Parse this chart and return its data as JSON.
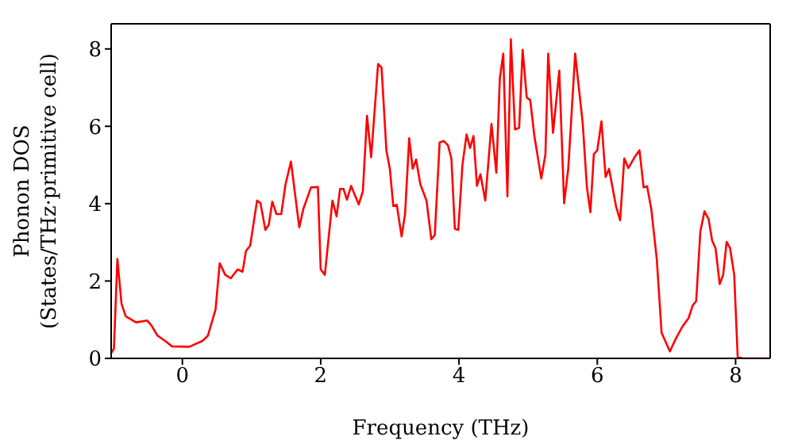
{
  "chart_data": {
    "type": "line",
    "xlabel": "Frequency (THz)",
    "ylabel": "Phonon DOS\n(States/THz·primitive cell)",
    "x": [
      -1.03,
      -0.99,
      -0.94,
      -0.88,
      -0.82,
      -0.67,
      -0.51,
      -0.45,
      -0.36,
      -0.25,
      -0.15,
      0.1,
      0.29,
      0.37,
      0.48,
      0.54,
      0.62,
      0.7,
      0.8,
      0.87,
      0.92,
      0.98,
      1.08,
      1.13,
      1.2,
      1.25,
      1.3,
      1.36,
      1.43,
      1.49,
      1.57,
      1.69,
      1.75,
      1.86,
      1.96,
      2.0,
      2.06,
      2.17,
      2.23,
      2.28,
      2.33,
      2.38,
      2.44,
      2.55,
      2.61,
      2.67,
      2.73,
      2.83,
      2.88,
      2.95,
      3.0,
      3.05,
      3.1,
      3.17,
      3.22,
      3.28,
      3.33,
      3.38,
      3.44,
      3.53,
      3.6,
      3.65,
      3.72,
      3.78,
      3.84,
      3.89,
      3.94,
      3.99,
      4.05,
      4.11,
      4.16,
      4.21,
      4.26,
      4.31,
      4.38,
      4.47,
      4.54,
      4.59,
      4.64,
      4.7,
      4.75,
      4.81,
      4.87,
      4.92,
      4.98,
      5.03,
      5.09,
      5.19,
      5.25,
      5.29,
      5.36,
      5.45,
      5.52,
      5.58,
      5.68,
      5.79,
      5.85,
      5.9,
      5.95,
      6.0,
      6.06,
      6.12,
      6.17,
      6.27,
      6.33,
      6.39,
      6.45,
      6.54,
      6.61,
      6.67,
      6.72,
      6.78,
      6.86,
      6.93,
      7.05,
      7.13,
      7.23,
      7.32,
      7.38,
      7.43,
      7.49,
      7.55,
      7.61,
      7.66,
      7.71,
      7.77,
      7.82,
      7.87,
      7.92,
      7.98,
      8.03,
      8.1,
      8.5
    ],
    "series": [
      {
        "color": "#ff0000",
        "values": [
          0.14,
          0.25,
          2.57,
          1.41,
          1.09,
          0.93,
          0.98,
          0.86,
          0.59,
          0.45,
          0.31,
          0.3,
          0.45,
          0.59,
          1.27,
          2.46,
          2.16,
          2.07,
          2.3,
          2.24,
          2.78,
          2.91,
          4.08,
          4.01,
          3.32,
          3.46,
          4.05,
          3.73,
          3.73,
          4.49,
          5.09,
          3.39,
          3.87,
          4.42,
          4.43,
          2.3,
          2.16,
          4.08,
          3.67,
          4.38,
          4.38,
          4.1,
          4.46,
          3.98,
          4.32,
          6.27,
          5.2,
          7.61,
          7.52,
          5.38,
          4.9,
          3.94,
          3.97,
          3.15,
          3.73,
          5.69,
          4.9,
          5.14,
          4.51,
          4.08,
          3.08,
          3.19,
          5.58,
          5.62,
          5.51,
          5.17,
          3.35,
          3.32,
          5.01,
          5.79,
          5.44,
          5.75,
          4.46,
          4.76,
          4.08,
          6.06,
          4.8,
          7.22,
          7.88,
          4.19,
          8.25,
          5.92,
          5.96,
          7.98,
          6.74,
          6.68,
          5.75,
          4.65,
          5.28,
          7.88,
          5.83,
          7.44,
          4.01,
          4.9,
          7.88,
          6.06,
          4.42,
          3.78,
          5.28,
          5.38,
          6.13,
          4.69,
          4.9,
          3.94,
          3.57,
          5.17,
          4.92,
          5.2,
          5.38,
          4.42,
          4.45,
          3.87,
          2.57,
          0.66,
          0.18,
          0.49,
          0.82,
          1.04,
          1.37,
          1.48,
          3.28,
          3.8,
          3.6,
          3.05,
          2.85,
          1.92,
          2.16,
          3.01,
          2.85,
          2.16,
          0.04,
          0,
          0
        ]
      }
    ],
    "xlim": [
      -1.03,
      8.5
    ],
    "xticks": [
      0,
      2,
      4,
      6,
      8
    ],
    "ylim": [
      0,
      8.65
    ],
    "yticks": [
      0,
      2,
      4,
      6,
      8
    ],
    "line_style": "solid"
  }
}
